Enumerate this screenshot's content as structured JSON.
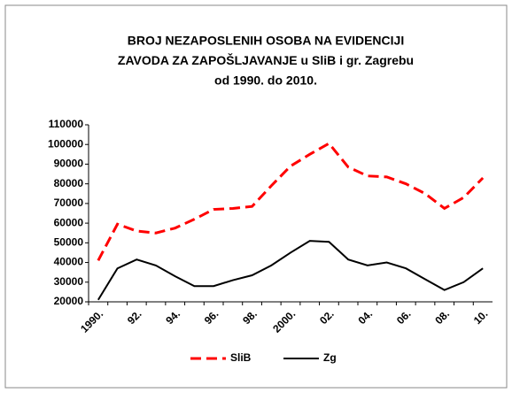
{
  "chart_data": {
    "type": "line",
    "title": [
      "BROJ NEZAPOSLENIH OSOBA NA EVIDENCIJI",
      "ZAVODA ZA ZAPOŠLJAVANJE u SliB i gr. Zagrebu",
      "od 1990. do 2010."
    ],
    "categories": [
      "1990.",
      null,
      "92.",
      null,
      "94.",
      null,
      "96.",
      null,
      "98.",
      null,
      "2000.",
      null,
      "02.",
      null,
      "04.",
      null,
      "06.",
      null,
      "08.",
      null,
      "10."
    ],
    "series": [
      {
        "name": "SliB",
        "color": "#ff0000",
        "dashed": true,
        "values": [
          41000,
          59500,
          56000,
          55000,
          57500,
          62000,
          67000,
          67500,
          68500,
          79000,
          89000,
          95000,
          100500,
          88500,
          84000,
          83500,
          80000,
          75000,
          67500,
          73000,
          83000
        ]
      },
      {
        "name": "Zg",
        "color": "#000000",
        "dashed": false,
        "values": [
          21000,
          37000,
          41500,
          38500,
          33000,
          28000,
          28000,
          31000,
          33500,
          38500,
          45000,
          51000,
          50500,
          41500,
          38500,
          40000,
          37000,
          31500,
          26000,
          30000,
          37000
        ]
      }
    ],
    "ylim": [
      20000,
      110000
    ],
    "yticks": [
      20000,
      30000,
      40000,
      50000,
      60000,
      70000,
      80000,
      90000,
      100000,
      110000
    ],
    "legend": "bottom"
  }
}
